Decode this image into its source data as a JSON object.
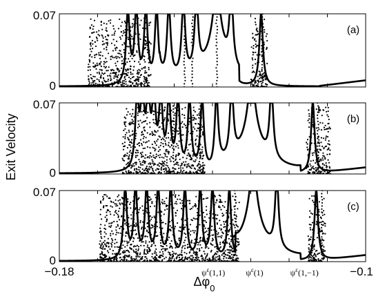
{
  "chart_data": {
    "type": "scatter",
    "ylabel": "Exit Velocity",
    "xlabel": "Δφ",
    "xlabel_subscript": "0",
    "xlim": [
      -0.18,
      -0.1
    ],
    "x_tick_labels": [
      "−0.18",
      "−0.1"
    ],
    "grid": false,
    "panels": [
      {
        "label": "(a)",
        "ylim": [
          0,
          0.07
        ],
        "y_tick_labels": [
          "0",
          "0.07"
        ],
        "center": -0.1389,
        "resonances": [
          -0.1621,
          -0.1599,
          -0.1574,
          -0.1546,
          -0.1514,
          -0.1476,
          -0.1442,
          -0.1351,
          -0.1273
        ],
        "dotted_spikes": [
          -0.1389,
          -0.1473,
          -0.127,
          -0.1453
        ],
        "chaotic_bands": [
          [
            -0.1725,
            -0.156
          ],
          [
            -0.13,
            -0.1257
          ]
        ],
        "regular_window": [
          -0.1538,
          -0.133
        ]
      },
      {
        "label": "(b)",
        "ylim": [
          0,
          0.07
        ],
        "y_tick_labels": [
          "0",
          "0.07"
        ],
        "center": -0.1298,
        "resonances": [
          -0.1597,
          -0.1583,
          -0.1568,
          -0.1553,
          -0.1535,
          -0.1514,
          -0.149,
          -0.146,
          -0.1427,
          -0.139,
          -0.135,
          -0.1246,
          -0.1138
        ],
        "dotted_spikes": [
          -0.1502,
          -0.1433,
          -0.1124
        ],
        "chaotic_bands": [
          [
            -0.1635,
            -0.142
          ],
          [
            -0.1155,
            -0.1092
          ]
        ],
        "regular_window": [
          -0.1392,
          -0.117
        ]
      },
      {
        "label": "(c)",
        "ylim": [
          0,
          0.07
        ],
        "y_tick_labels": [
          "0",
          "0.07"
        ],
        "center": -0.1294,
        "resonances": [
          -0.1628,
          -0.1601,
          -0.1572,
          -0.1542,
          -0.1509,
          -0.1472,
          -0.1432,
          -0.14,
          -0.1356,
          -0.1232,
          -0.1129
        ],
        "dotted_spikes": [
          -0.134,
          -0.1114
        ],
        "chaotic_bands": [
          [
            -0.1695,
            -0.133
          ],
          [
            -0.115,
            -0.1105
          ]
        ],
        "regular_window": [
          -0.134,
          -0.117
        ]
      }
    ],
    "annotations": [
      {
        "text": "ψ",
        "sup": "ε",
        "rest": "(1,1)",
        "x": -0.1398
      },
      {
        "text": "ψ",
        "sup": "ε",
        "rest": "(1)",
        "x": -0.129
      },
      {
        "text": "ψ",
        "sup": "ε",
        "rest": "(1,−1)",
        "x": -0.116
      }
    ]
  }
}
